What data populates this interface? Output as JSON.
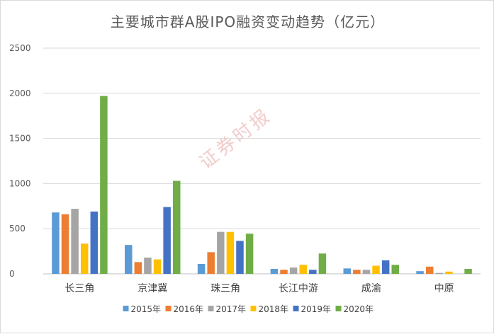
{
  "chart_data": {
    "type": "bar",
    "title": "主要城市群A股IPO融资变动趋势（亿元）",
    "categories": [
      "长三角",
      "京津冀",
      "珠三角",
      "长江中游",
      "成渝",
      "中原"
    ],
    "series": [
      {
        "name": "2015年",
        "color": "#5b9bd5",
        "values": [
          680,
          320,
          110,
          55,
          60,
          30
        ]
      },
      {
        "name": "2016年",
        "color": "#ed7d31",
        "values": [
          660,
          130,
          240,
          45,
          45,
          80
        ]
      },
      {
        "name": "2017年",
        "color": "#a5a5a5",
        "values": [
          720,
          180,
          465,
          70,
          45,
          10
        ]
      },
      {
        "name": "2018年",
        "color": "#ffc000",
        "values": [
          335,
          160,
          465,
          100,
          90,
          25
        ]
      },
      {
        "name": "2019年",
        "color": "#4472c4",
        "values": [
          690,
          740,
          365,
          45,
          150,
          0
        ]
      },
      {
        "name": "2020年",
        "color": "#70ad47",
        "values": [
          1970,
          1030,
          445,
          225,
          100,
          55
        ]
      }
    ],
    "ylim": [
      0,
      2500
    ],
    "yticks": [
      0,
      500,
      1000,
      1500,
      2000,
      2500
    ],
    "grid": true,
    "legend": "bottom",
    "watermark": "证券时报"
  }
}
